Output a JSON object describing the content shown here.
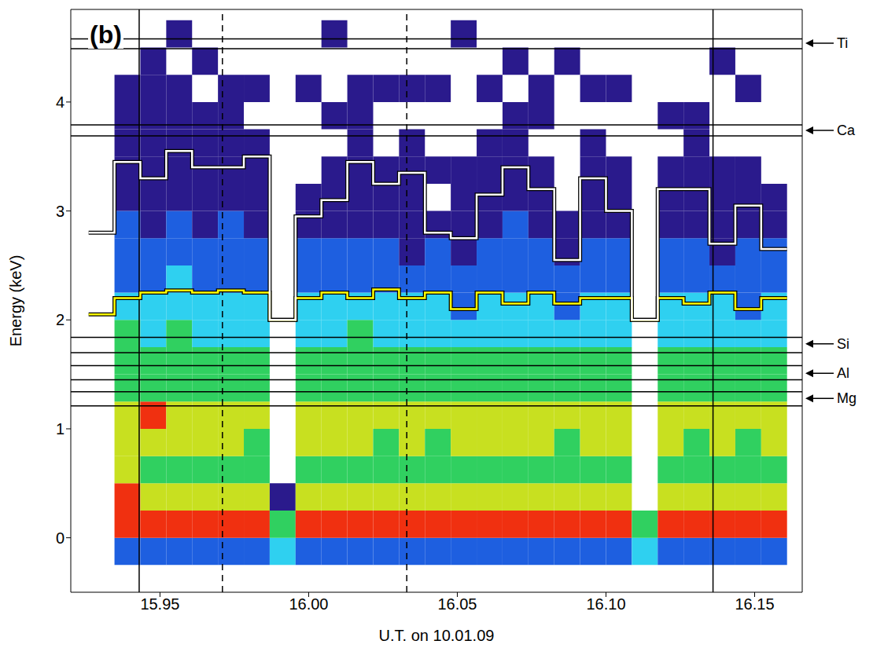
{
  "chart_data": {
    "type": "heatmap",
    "panel": "(b)",
    "x_label": "U.T. on 10.01.09",
    "y_label": "Energy (keV)",
    "xlim": [
      15.92,
      16.166
    ],
    "ylim": [
      -0.5,
      4.85
    ],
    "xticks": [
      15.95,
      {
        "value": 16.0,
        "label": "16.00"
      },
      16.05,
      {
        "value": 16.1,
        "label": "16.10"
      },
      16.15
    ],
    "yticks": [
      0,
      1,
      2,
      3,
      4
    ],
    "grid": false,
    "x_edges": [
      15.926,
      15.9347,
      15.9434,
      15.9521,
      15.9608,
      15.9695,
      15.9782,
      15.9869,
      15.9956,
      16.0043,
      16.013,
      16.0217,
      16.0304,
      16.0391,
      16.0478,
      16.0565,
      16.0652,
      16.0739,
      16.0826,
      16.0913,
      16.1,
      16.1087,
      16.1174,
      16.1261,
      16.1348,
      16.1435,
      16.1522,
      16.1609
    ],
    "y_edges": [
      -0.25,
      0,
      0.25,
      0.5,
      0.75,
      1,
      1.25,
      1.5,
      1.75,
      2,
      2.25,
      2.5,
      2.75,
      3,
      3.25,
      3.5,
      3.75,
      4,
      4.25,
      4.5,
      4.75
    ],
    "cells": [
      [
        0,
        0,
        0,
        0,
        0,
        0,
        0,
        0,
        0,
        0,
        0,
        0,
        0,
        0,
        0,
        0,
        0,
        0,
        0,
        0
      ],
      [
        2,
        6,
        6,
        5,
        5,
        5,
        4,
        4,
        4,
        3,
        2,
        2,
        2,
        1,
        1,
        1,
        1,
        1,
        0,
        0
      ],
      [
        2,
        6,
        5,
        4,
        5,
        6,
        4,
        4,
        3,
        3,
        2,
        2,
        1,
        1,
        1,
        1,
        1,
        1,
        1,
        0
      ],
      [
        2,
        6,
        5,
        4,
        5,
        5,
        4,
        4,
        4,
        3,
        3,
        2,
        2,
        1,
        1,
        1,
        1,
        1,
        0,
        1
      ],
      [
        2,
        6,
        5,
        4,
        5,
        5,
        4,
        4,
        3,
        3,
        2,
        2,
        1,
        1,
        1,
        1,
        1,
        0,
        1,
        0
      ],
      [
        2,
        6,
        5,
        4,
        5,
        5,
        4,
        4,
        3,
        3,
        2,
        2,
        2,
        1,
        1,
        1,
        1,
        1,
        0,
        0
      ],
      [
        2,
        6,
        5,
        4,
        4,
        5,
        4,
        4,
        3,
        3,
        2,
        2,
        1,
        1,
        1,
        1,
        0,
        1,
        0,
        0
      ],
      [
        3,
        4,
        1,
        0,
        0,
        0,
        0,
        0,
        0,
        0,
        0,
        0,
        0,
        0,
        0,
        0,
        0,
        0,
        0,
        0
      ],
      [
        2,
        6,
        5,
        4,
        5,
        5,
        4,
        4,
        3,
        3,
        2,
        2,
        1,
        1,
        0,
        0,
        0,
        1,
        0,
        0
      ],
      [
        2,
        6,
        5,
        4,
        5,
        5,
        4,
        4,
        3,
        3,
        2,
        2,
        1,
        1,
        1,
        0,
        1,
        0,
        0,
        1
      ],
      [
        2,
        6,
        5,
        4,
        5,
        5,
        4,
        4,
        4,
        3,
        2,
        2,
        1,
        1,
        1,
        1,
        1,
        1,
        0,
        0
      ],
      [
        2,
        6,
        5,
        4,
        4,
        5,
        4,
        4,
        3,
        3,
        2,
        2,
        1,
        1,
        1,
        0,
        0,
        1,
        0,
        0
      ],
      [
        2,
        6,
        5,
        4,
        5,
        5,
        4,
        4,
        3,
        3,
        2,
        1,
        1,
        1,
        1,
        1,
        0,
        1,
        0,
        0
      ],
      [
        2,
        6,
        5,
        4,
        4,
        5,
        4,
        4,
        3,
        3,
        2,
        2,
        1,
        0,
        1,
        0,
        0,
        1,
        0,
        0
      ],
      [
        2,
        6,
        5,
        4,
        5,
        5,
        4,
        4,
        3,
        2,
        2,
        1,
        1,
        1,
        1,
        0,
        0,
        0,
        0,
        1
      ],
      [
        2,
        6,
        5,
        4,
        5,
        5,
        4,
        4,
        3,
        3,
        2,
        2,
        1,
        1,
        1,
        1,
        0,
        1,
        0,
        0
      ],
      [
        2,
        6,
        5,
        4,
        5,
        5,
        4,
        4,
        3,
        3,
        2,
        2,
        2,
        1,
        1,
        1,
        1,
        0,
        1,
        0
      ],
      [
        2,
        6,
        5,
        4,
        5,
        5,
        4,
        4,
        3,
        3,
        2,
        2,
        1,
        1,
        1,
        0,
        1,
        1,
        0,
        0
      ],
      [
        2,
        6,
        5,
        4,
        4,
        5,
        4,
        4,
        3,
        2,
        2,
        1,
        1,
        0,
        0,
        0,
        0,
        0,
        1,
        0
      ],
      [
        2,
        6,
        5,
        4,
        5,
        5,
        4,
        4,
        3,
        3,
        2,
        2,
        1,
        1,
        1,
        1,
        0,
        1,
        0,
        0
      ],
      [
        2,
        6,
        5,
        4,
        5,
        5,
        4,
        4,
        3,
        3,
        2,
        2,
        1,
        1,
        1,
        0,
        0,
        1,
        0,
        0
      ],
      [
        3,
        4,
        0,
        0,
        0,
        0,
        0,
        0,
        0,
        0,
        0,
        0,
        0,
        0,
        0,
        0,
        0,
        0,
        0,
        0
      ],
      [
        2,
        6,
        5,
        4,
        5,
        5,
        4,
        4,
        3,
        3,
        2,
        2,
        1,
        1,
        1,
        0,
        1,
        0,
        0,
        0
      ],
      [
        2,
        6,
        5,
        4,
        4,
        5,
        4,
        4,
        3,
        3,
        2,
        2,
        1,
        1,
        1,
        1,
        1,
        0,
        0,
        0
      ],
      [
        2,
        6,
        5,
        4,
        5,
        5,
        4,
        4,
        3,
        3,
        2,
        1,
        1,
        1,
        1,
        0,
        0,
        0,
        1,
        0
      ],
      [
        2,
        6,
        5,
        4,
        4,
        5,
        4,
        4,
        3,
        2,
        2,
        2,
        1,
        1,
        1,
        0,
        0,
        1,
        0,
        0
      ],
      [
        2,
        6,
        5,
        4,
        5,
        5,
        4,
        4,
        3,
        3,
        2,
        2,
        1,
        1,
        0,
        0,
        0,
        0,
        0,
        0
      ]
    ],
    "series": [
      {
        "color": "#ffff00",
        "type": "line",
        "line_style": "step",
        "values": [
          2.05,
          2.2,
          2.25,
          2.27,
          2.25,
          2.27,
          2.25,
          2.0,
          2.2,
          2.25,
          2.2,
          2.28,
          2.2,
          2.25,
          2.1,
          2.25,
          2.15,
          2.25,
          2.15,
          2.2,
          2.2,
          2.0,
          2.2,
          2.15,
          2.25,
          2.1,
          2.2
        ]
      },
      {
        "color": "#ffffff",
        "type": "line",
        "line_style": "step",
        "values": [
          2.8,
          3.45,
          3.3,
          3.55,
          3.4,
          3.4,
          3.5,
          2.0,
          2.95,
          3.1,
          3.45,
          3.25,
          3.35,
          2.8,
          2.75,
          3.15,
          3.4,
          3.2,
          2.55,
          3.3,
          3.0,
          2.0,
          3.2,
          3.2,
          2.7,
          3.05,
          2.65
        ]
      }
    ],
    "elements": [
      {
        "label": "Ti",
        "lines": [
          4.49,
          4.58
        ],
        "arrow": 4.54
      },
      {
        "label": "Ca",
        "lines": [
          3.69,
          3.79
        ],
        "arrow": 3.74
      },
      {
        "label": "Si",
        "lines": [
          1.7,
          1.84
        ],
        "arrow": 1.78
      },
      {
        "label": "Al",
        "lines": [
          1.45,
          1.58
        ],
        "arrow": 1.51
      },
      {
        "label": "Mg",
        "lines": [
          1.21,
          1.34
        ],
        "arrow": 1.28
      }
    ],
    "vlines": [
      {
        "x": 15.943,
        "line_style": "solid"
      },
      {
        "x": 15.971,
        "line_style": "dashed"
      },
      {
        "x": 16.033,
        "line_style": "dashed"
      },
      {
        "x": 16.136,
        "line_style": "solid"
      }
    ]
  }
}
